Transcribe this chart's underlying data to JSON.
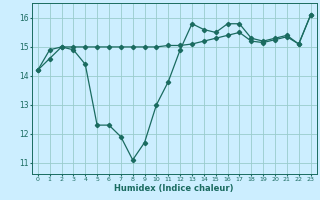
{
  "title": "",
  "xlabel": "Humidex (Indice chaleur)",
  "bg_color": "#cceeff",
  "line_color": "#1a6b60",
  "grid_color": "#99cccc",
  "x_ticks": [
    0,
    1,
    2,
    3,
    4,
    5,
    6,
    7,
    8,
    9,
    10,
    11,
    12,
    13,
    14,
    15,
    16,
    17,
    18,
    19,
    20,
    21,
    22,
    23
  ],
  "x_tick_labels": [
    "0",
    "1",
    "2",
    "3",
    "4",
    "5",
    "6",
    "7",
    "8",
    "9",
    "10",
    "11",
    "12",
    "13",
    "14",
    "15",
    "16",
    "17",
    "18",
    "19",
    "20",
    "21",
    "22",
    "23"
  ],
  "y_ticks": [
    11,
    12,
    13,
    14,
    15,
    16
  ],
  "ylim": [
    10.6,
    16.5
  ],
  "xlim": [
    -0.5,
    23.5
  ],
  "line1_x": [
    0,
    1,
    2,
    3,
    4,
    5,
    6,
    7,
    8,
    9,
    10,
    11,
    12,
    13,
    14,
    15,
    16,
    17,
    18,
    19,
    20,
    21,
    22,
    23
  ],
  "line1_y": [
    14.2,
    14.6,
    15.0,
    14.9,
    14.4,
    12.3,
    12.3,
    11.9,
    11.1,
    11.7,
    13.0,
    13.8,
    14.9,
    15.8,
    15.6,
    15.5,
    15.8,
    15.8,
    15.3,
    15.2,
    15.3,
    15.4,
    15.1,
    16.1
  ],
  "line2_x": [
    0,
    1,
    2,
    3,
    4,
    5,
    6,
    7,
    8,
    9,
    10,
    11,
    12,
    13,
    14,
    15,
    16,
    17,
    18,
    19,
    20,
    21,
    22,
    23
  ],
  "line2_y": [
    14.2,
    14.9,
    15.0,
    15.0,
    15.0,
    15.0,
    15.0,
    15.0,
    15.0,
    15.0,
    15.0,
    15.05,
    15.05,
    15.1,
    15.2,
    15.3,
    15.4,
    15.5,
    15.2,
    15.15,
    15.25,
    15.35,
    15.1,
    16.1
  ],
  "marker": "D",
  "markersize": 2.2,
  "linewidth": 0.9
}
